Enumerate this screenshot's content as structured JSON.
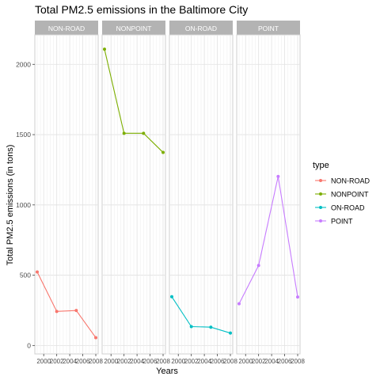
{
  "chart_data": {
    "type": "line",
    "title": "Total PM2.5 emissions in the Baltimore City",
    "xlabel": "Years",
    "ylabel": "Total PM2.5 emissions (in tons)",
    "x": [
      1999,
      2002,
      2005,
      2008
    ],
    "xticks": [
      2000,
      2002,
      2004,
      2006,
      2008
    ],
    "xtick_labels": [
      "2000",
      "2002",
      "2004",
      "2006",
      "2008"
    ],
    "xlim": [
      1999,
      2008
    ],
    "yticks": [
      0,
      500,
      1000,
      1500,
      2000
    ],
    "ytick_labels": [
      "0",
      "500",
      "1000",
      "1500",
      "2000"
    ],
    "ylim": [
      -60,
      2210
    ],
    "grid": true,
    "legend": {
      "title": "type",
      "position": "right"
    },
    "facet_by": "type",
    "series": [
      {
        "name": "NON-ROAD",
        "color": "#F8766D",
        "values": [
          522.94,
          242.29,
          248.93,
          55.82
        ]
      },
      {
        "name": "NONPOINT",
        "color": "#7CAE00",
        "values": [
          2107.63,
          1509.5,
          1509.5,
          1373.21
        ]
      },
      {
        "name": "ON-ROAD",
        "color": "#00BFC4",
        "values": [
          346.82,
          134.31,
          130.43,
          88.28
        ]
      },
      {
        "name": "POINT",
        "color": "#C77CFF",
        "values": [
          296.8,
          569.26,
          1202.49,
          344.98
        ]
      }
    ]
  }
}
